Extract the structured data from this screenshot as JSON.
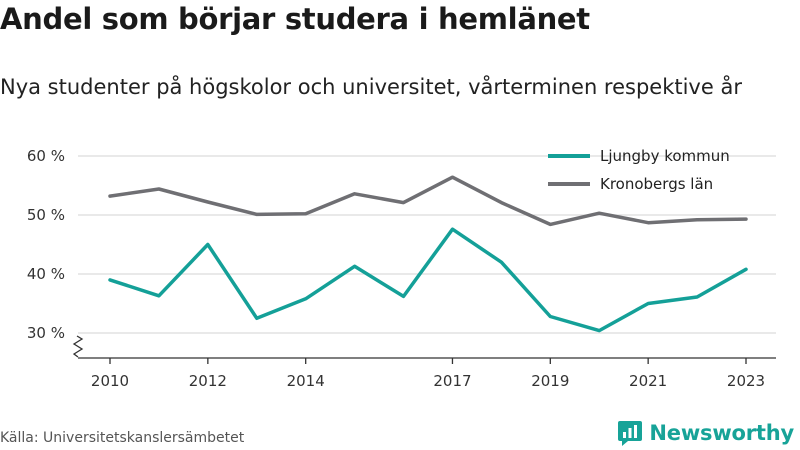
{
  "title": "Andel som börjar studera i hemlänet",
  "subtitle": "Nya studenter på högskolor och universitet, vårterminen respektive år",
  "source": "Källa: Universitetskanslersämbetet",
  "brand": {
    "name": "Newsworthy",
    "icon": "newsworthy-logo-icon",
    "color": "#17a398"
  },
  "chart_data": {
    "type": "line",
    "title": "Andel som börjar studera i hemlänet",
    "subtitle": "Nya studenter på högskolor och universitet, vårterminen respektive år",
    "x": [
      2010,
      2011,
      2012,
      2013,
      2014,
      2015,
      2016,
      2017,
      2018,
      2019,
      2020,
      2021,
      2022,
      2023
    ],
    "x_ticks": [
      2010,
      2012,
      2014,
      2017,
      2019,
      2021,
      2023
    ],
    "y_ticks": [
      30,
      40,
      50,
      60
    ],
    "y_tick_labels": [
      "30 %",
      "40 %",
      "50 %",
      "60 %"
    ],
    "ylim": [
      28,
      62
    ],
    "y_axis_break": true,
    "grid": true,
    "legend_position": "top-right",
    "series": [
      {
        "name": "Ljungby kommun",
        "color": "#14a098",
        "values": [
          39.0,
          36.3,
          45.0,
          32.5,
          35.8,
          41.3,
          36.2,
          47.6,
          42.0,
          32.8,
          30.4,
          35.0,
          36.1,
          40.8
        ]
      },
      {
        "name": "Kronobergs län",
        "color": "#6f6f73",
        "values": [
          53.2,
          54.4,
          52.2,
          50.1,
          50.2,
          53.6,
          52.1,
          56.4,
          52.1,
          48.4,
          50.3,
          48.7,
          49.2,
          49.3
        ]
      }
    ]
  }
}
